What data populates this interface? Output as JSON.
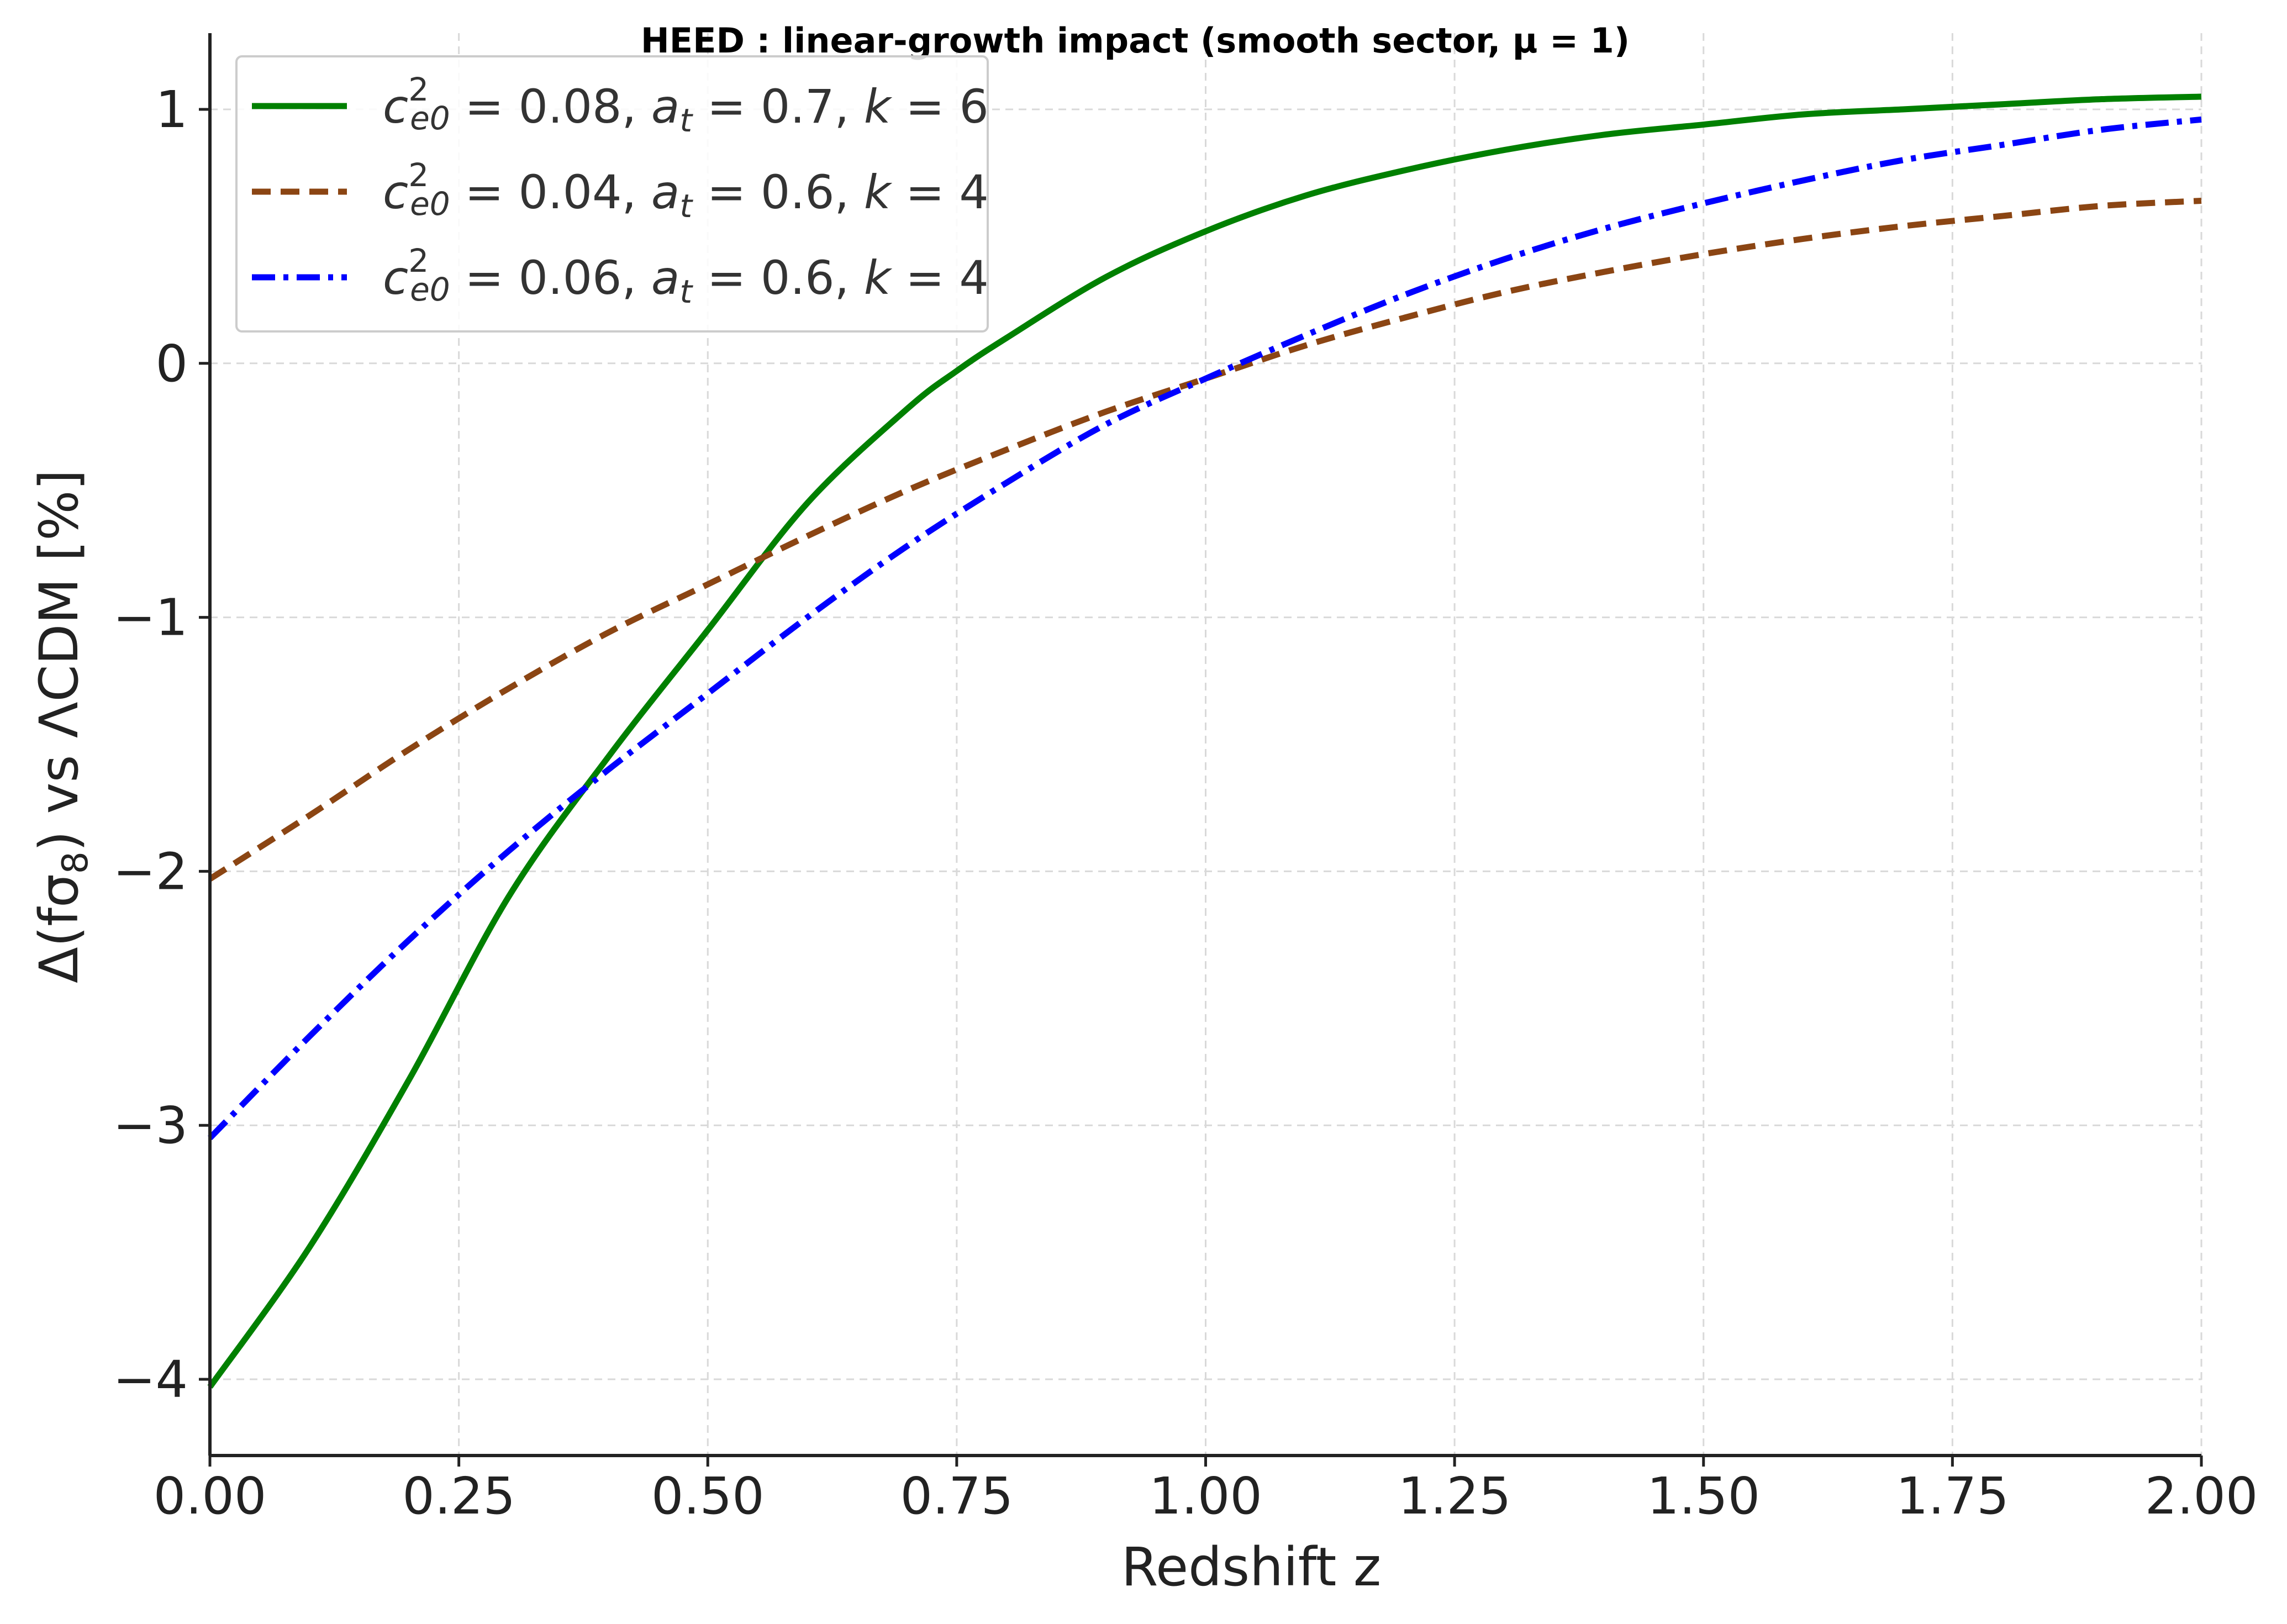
{
  "chart_data": {
    "type": "line",
    "title": "HEED : linear-growth impact (smooth sector, μ = 1)",
    "xlabel": "Redshift z",
    "ylabel": "Δ(fσ8) vs ΛCDM [%]",
    "xlim": [
      0,
      2
    ],
    "ylim": [
      -4.3,
      1.3
    ],
    "x_ticks": [
      0,
      0.25,
      0.5,
      0.75,
      1.0,
      1.25,
      1.5,
      1.75,
      2.0
    ],
    "x_tick_labels": [
      "0.00",
      "0.25",
      "0.50",
      "0.75",
      "1.00",
      "1.25",
      "1.50",
      "1.75",
      "2.00"
    ],
    "y_ticks": [
      -4,
      -3,
      -2,
      -1,
      0,
      1
    ],
    "y_tick_labels": [
      "−4",
      "−3",
      "−2",
      "−1",
      "0",
      "1"
    ],
    "grid": true,
    "legend_position": "top-left",
    "series": [
      {
        "name": "c²e0 = 0.08,  at = 0.7,  k = 6",
        "legend": {
          "c2": "0.08",
          "at": "0.7",
          "k": "6"
        },
        "color": "#008000",
        "dash": "solid",
        "x": [
          0,
          0.1,
          0.2,
          0.3,
          0.4,
          0.5,
          0.6,
          0.7,
          0.75,
          0.8,
          0.9,
          1.0,
          1.1,
          1.2,
          1.3,
          1.4,
          1.5,
          1.6,
          1.7,
          1.8,
          1.9,
          2.0
        ],
        "y": [
          -4.03,
          -3.48,
          -2.82,
          -2.1,
          -1.55,
          -1.05,
          -0.55,
          -0.18,
          -0.03,
          0.1,
          0.34,
          0.52,
          0.66,
          0.76,
          0.84,
          0.9,
          0.94,
          0.98,
          1.0,
          1.02,
          1.04,
          1.05
        ]
      },
      {
        "name": "c²e0 = 0.04,  at = 0.6,  k = 4",
        "legend": {
          "c2": "0.04",
          "at": "0.6",
          "k": "4"
        },
        "color": "#8B4513",
        "dash": "dashed",
        "x": [
          0,
          0.1,
          0.2,
          0.3,
          0.4,
          0.5,
          0.6,
          0.7,
          0.8,
          0.9,
          1.0,
          1.1,
          1.2,
          1.3,
          1.4,
          1.5,
          1.6,
          1.7,
          1.8,
          1.9,
          2.0
        ],
        "y": [
          -2.03,
          -1.78,
          -1.52,
          -1.28,
          -1.06,
          -0.87,
          -0.68,
          -0.5,
          -0.34,
          -0.19,
          -0.06,
          0.07,
          0.18,
          0.28,
          0.36,
          0.43,
          0.49,
          0.54,
          0.58,
          0.62,
          0.64
        ]
      },
      {
        "name": "c²e0 = 0.06,  at = 0.6,  k = 4",
        "legend": {
          "c2": "0.06",
          "at": "0.6",
          "k": "4"
        },
        "color": "#0000FF",
        "dash": "dashdot",
        "x": [
          0,
          0.1,
          0.2,
          0.3,
          0.4,
          0.5,
          0.6,
          0.7,
          0.8,
          0.9,
          1.0,
          1.1,
          1.2,
          1.3,
          1.4,
          1.5,
          1.6,
          1.7,
          1.8,
          1.9,
          2.0
        ],
        "y": [
          -3.05,
          -2.65,
          -2.27,
          -1.92,
          -1.6,
          -1.3,
          -1.0,
          -0.72,
          -0.47,
          -0.24,
          -0.06,
          0.11,
          0.27,
          0.41,
          0.53,
          0.63,
          0.72,
          0.8,
          0.86,
          0.92,
          0.96
        ]
      }
    ]
  }
}
